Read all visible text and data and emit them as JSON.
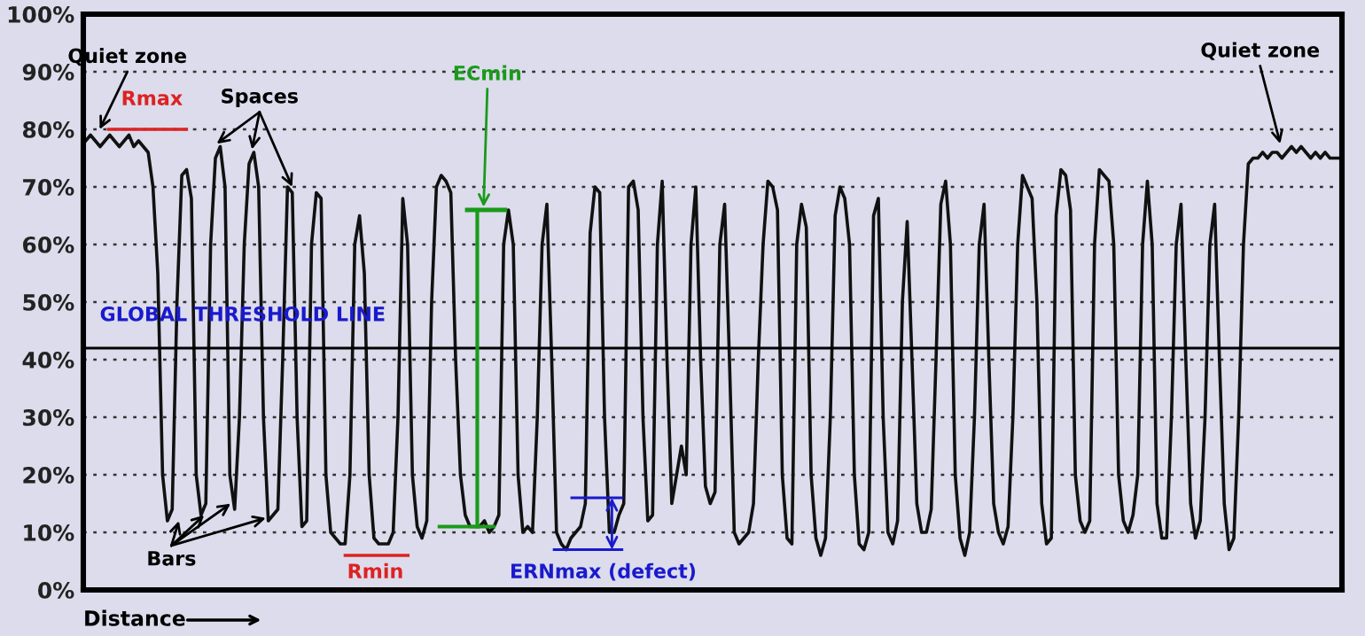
{
  "chart_data": {
    "type": "line",
    "xlabel": "Distance",
    "categories": [
      null,
      null,
      null,
      null,
      null,
      null,
      null,
      null,
      null,
      null,
      null,
      null,
      null,
      null,
      null,
      null,
      null,
      null,
      null,
      null,
      null,
      null,
      null,
      null,
      null,
      null,
      null,
      null,
      null,
      null,
      null,
      null,
      null,
      null,
      null,
      null,
      null,
      null,
      null,
      null,
      null,
      null,
      null,
      null,
      null,
      null,
      null,
      null,
      null,
      null,
      null,
      null,
      null,
      null,
      null,
      null,
      null,
      null,
      null,
      null,
      null,
      null,
      null,
      null,
      null,
      null,
      null,
      null,
      null,
      null,
      null,
      null,
      null,
      null,
      null,
      null,
      null,
      null,
      null,
      null,
      null,
      null,
      null,
      null,
      null,
      null,
      null,
      null,
      null,
      null,
      null,
      null,
      null,
      null,
      null,
      null,
      null,
      null,
      null,
      null,
      null,
      null,
      null,
      null,
      null,
      null,
      null,
      null,
      null,
      null,
      null,
      null,
      null,
      null,
      null,
      null,
      null,
      null,
      null,
      null,
      null,
      null,
      null,
      null,
      null,
      null,
      null,
      null,
      null,
      null,
      null,
      null,
      null,
      null,
      null,
      null,
      null,
      null,
      null,
      null,
      null,
      null,
      null,
      null,
      null,
      null,
      null,
      null,
      null,
      null,
      null,
      null,
      null,
      null,
      null,
      null,
      null,
      null,
      null,
      null,
      null,
      null,
      null,
      null,
      null,
      null,
      null,
      null,
      null,
      null,
      null,
      null,
      null,
      null,
      null,
      null,
      null,
      null,
      null,
      null,
      null,
      null,
      null,
      null,
      null,
      null,
      null,
      null,
      null,
      null,
      null,
      null,
      null,
      null,
      null,
      null,
      null,
      null,
      null,
      null,
      null,
      null,
      null,
      null,
      null,
      null,
      null,
      null,
      null,
      null,
      null,
      null,
      null,
      null,
      null,
      null,
      null,
      null,
      null,
      null,
      null,
      null,
      null,
      null,
      null,
      null,
      null,
      null,
      null,
      null,
      null,
      null,
      null,
      null,
      null,
      null,
      null,
      null,
      null,
      null,
      null,
      null,
      null,
      null,
      null,
      null,
      null,
      null,
      null,
      null,
      null,
      null,
      null,
      null,
      null,
      null,
      null,
      null,
      null,
      null,
      null,
      null
    ],
    "series": [
      {
        "color": "#111111",
        "values": [
          78,
          79,
          78,
          77,
          78,
          79,
          78,
          77,
          78,
          79,
          77,
          78,
          77,
          76,
          70,
          55,
          20,
          12,
          14,
          50,
          72,
          73,
          68,
          20,
          13,
          15,
          60,
          75,
          77,
          70,
          20,
          14,
          30,
          60,
          74,
          76,
          70,
          30,
          12,
          13,
          14,
          40,
          70,
          69,
          30,
          11,
          12,
          60,
          69,
          68,
          20,
          10,
          9,
          8,
          8,
          20,
          60,
          65,
          55,
          20,
          9,
          8,
          8,
          8,
          10,
          30,
          68,
          60,
          20,
          11,
          9,
          12,
          50,
          70,
          72,
          71,
          69,
          40,
          20,
          13,
          11,
          11,
          11,
          12,
          10,
          11,
          13,
          60,
          66,
          60,
          20,
          10,
          11,
          10,
          30,
          60,
          67,
          40,
          10,
          8,
          7,
          9,
          10,
          11,
          15,
          62,
          70,
          69,
          30,
          10,
          10,
          13,
          15,
          70,
          71,
          66,
          30,
          12,
          13,
          60,
          71,
          40,
          15,
          20,
          25,
          20,
          60,
          70,
          40,
          18,
          15,
          17,
          60,
          67,
          40,
          10,
          8,
          9,
          10,
          15,
          40,
          60,
          71,
          70,
          66,
          20,
          9,
          8,
          60,
          67,
          63,
          20,
          9,
          6,
          9,
          30,
          65,
          70,
          68,
          60,
          20,
          8,
          7,
          10,
          65,
          68,
          30,
          10,
          8,
          12,
          50,
          64,
          40,
          15,
          10,
          10,
          14,
          40,
          67,
          71,
          60,
          20,
          9,
          6,
          10,
          30,
          60,
          67,
          40,
          15,
          10,
          8,
          11,
          30,
          60,
          72,
          70,
          68,
          50,
          15,
          8,
          9,
          65,
          73,
          72,
          66,
          20,
          12,
          10,
          12,
          60,
          73,
          72,
          71,
          60,
          20,
          12,
          10,
          13,
          20,
          60,
          71,
          60,
          15,
          9,
          9,
          30,
          60,
          67,
          40,
          15,
          9,
          12,
          30,
          60,
          67,
          40,
          15,
          7,
          9,
          30,
          60,
          74,
          75,
          75,
          76,
          75,
          76,
          76,
          75,
          76,
          77,
          76,
          77,
          76,
          75,
          76,
          75,
          76,
          75,
          75,
          75
        ]
      }
    ],
    "ylim": [
      0,
      100
    ],
    "yticks": [
      {
        "value": 0,
        "label": "0%"
      },
      {
        "value": 10,
        "label": "10%"
      },
      {
        "value": 20,
        "label": "20%"
      },
      {
        "value": 30,
        "label": "30%"
      },
      {
        "value": 40,
        "label": "40%"
      },
      {
        "value": 50,
        "label": "50%"
      },
      {
        "value": 60,
        "label": "60%"
      },
      {
        "value": 70,
        "label": "70%"
      },
      {
        "value": 80,
        "label": "80%"
      },
      {
        "value": 90,
        "label": "90%"
      },
      {
        "value": 100,
        "label": "100%"
      }
    ],
    "tick_labels": "y",
    "grid": "y",
    "ref_lines": [
      {
        "axis": "y",
        "value": 42,
        "label": "GLOBAL THRESHOLD LINE",
        "color": "#000000",
        "line_style": "solid"
      }
    ],
    "annotations": [
      "Quiet zone",
      "Rmax",
      "Spaces",
      "ECmin",
      "Bars",
      "Rmin",
      "ERNmax (defect)",
      "Quiet zone"
    ]
  }
}
